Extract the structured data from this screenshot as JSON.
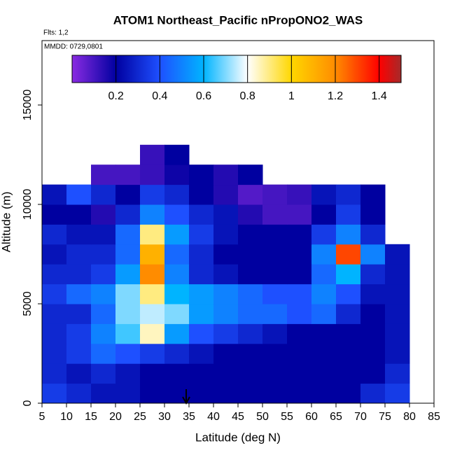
{
  "chart_data": {
    "type": "heatmap",
    "title": "ATOM1 Northeast_Pacific nPropONO2_WAS",
    "annotations": [
      "Flts: 1,2",
      "MMDD: 0729,0801"
    ],
    "x_label": "Latitude (deg N)",
    "y_label": "Altitude (m)",
    "xlim": [
      5,
      85
    ],
    "xticks": [
      5,
      10,
      15,
      20,
      25,
      30,
      35,
      40,
      45,
      50,
      55,
      60,
      65,
      70,
      75,
      80,
      85
    ],
    "ylim": [
      0,
      18240
    ],
    "yticks": [
      0,
      5000,
      10000,
      15000
    ],
    "x_bins": [
      5,
      10,
      15,
      20,
      25,
      30,
      35,
      40,
      45,
      50,
      55,
      60,
      65,
      70,
      75,
      80
    ],
    "y_bins": [
      0,
      1000,
      2000,
      3000,
      4000,
      5000,
      6000,
      7000,
      8000,
      9000,
      10000,
      11000,
      12000,
      13000
    ],
    "values": [
      [
        0.35,
        0.3,
        0.25,
        0.25,
        0.2,
        0.2,
        0.2,
        0.2,
        0.2,
        0.2,
        0.2,
        0.2,
        0.2,
        0.3,
        0.35
      ],
      [
        0.3,
        0.25,
        0.3,
        0.25,
        0.2,
        0.2,
        0.2,
        0.2,
        0.2,
        0.2,
        0.2,
        0.2,
        0.2,
        0.2,
        0.3
      ],
      [
        0.3,
        0.35,
        0.45,
        0.4,
        0.35,
        0.3,
        0.25,
        0.2,
        0.2,
        0.2,
        0.2,
        0.2,
        0.2,
        0.2,
        0.25
      ],
      [
        0.3,
        0.35,
        0.5,
        0.65,
        0.85,
        0.55,
        0.4,
        0.35,
        0.3,
        0.25,
        0.2,
        0.2,
        0.2,
        0.2,
        0.25
      ],
      [
        0.3,
        0.3,
        0.45,
        0.7,
        0.75,
        0.7,
        0.55,
        0.5,
        0.45,
        0.45,
        0.4,
        0.45,
        0.3,
        0.2,
        0.25
      ],
      [
        0.35,
        0.45,
        0.5,
        0.7,
        0.9,
        0.6,
        0.55,
        0.5,
        0.45,
        0.4,
        0.4,
        0.5,
        0.4,
        0.25,
        0.25
      ],
      [
        0.3,
        0.3,
        0.35,
        0.55,
        1.2,
        0.5,
        0.3,
        0.25,
        0.2,
        0.2,
        0.2,
        0.45,
        0.6,
        0.3,
        0.25
      ],
      [
        0.25,
        0.3,
        0.3,
        0.45,
        1.1,
        0.45,
        0.3,
        0.2,
        0.2,
        0.2,
        0.2,
        0.5,
        1.3,
        0.5,
        0.25
      ],
      [
        0.3,
        0.25,
        0.25,
        0.45,
        0.9,
        0.55,
        0.35,
        0.25,
        0.2,
        0.2,
        0.2,
        0.35,
        0.5,
        0.3,
        null
      ],
      [
        0.2,
        0.2,
        0.15,
        0.3,
        0.5,
        0.4,
        0.3,
        0.25,
        0.15,
        0.1,
        0.1,
        0.2,
        0.35,
        0.2,
        null
      ],
      [
        0.25,
        0.4,
        0.3,
        0.2,
        0.35,
        0.3,
        0.2,
        0.15,
        0.08,
        0.1,
        0.12,
        0.25,
        0.3,
        0.2,
        null
      ],
      [
        null,
        null,
        0.1,
        0.1,
        0.12,
        0.18,
        0.2,
        0.15,
        0.2,
        null,
        null,
        null,
        null,
        null,
        null
      ],
      [
        null,
        null,
        null,
        null,
        0.12,
        0.2,
        null,
        null,
        null,
        null,
        null,
        null,
        null,
        null,
        null
      ]
    ],
    "clim": [
      0,
      1.5
    ],
    "cticks": [
      0.2,
      0.4,
      0.6,
      0.8,
      1.0,
      1.2,
      1.4
    ],
    "colormap": [
      [
        0,
        "#8a2be2"
      ],
      [
        0.2,
        "#0000a0"
      ],
      [
        0.4,
        "#1e50ff"
      ],
      [
        0.6,
        "#00b4ff"
      ],
      [
        0.8,
        "#ffffff"
      ],
      [
        1.0,
        "#ffd700"
      ],
      [
        1.2,
        "#ff8c00"
      ],
      [
        1.4,
        "#ff0000"
      ],
      [
        1.5,
        "#a52a2a"
      ]
    ]
  }
}
